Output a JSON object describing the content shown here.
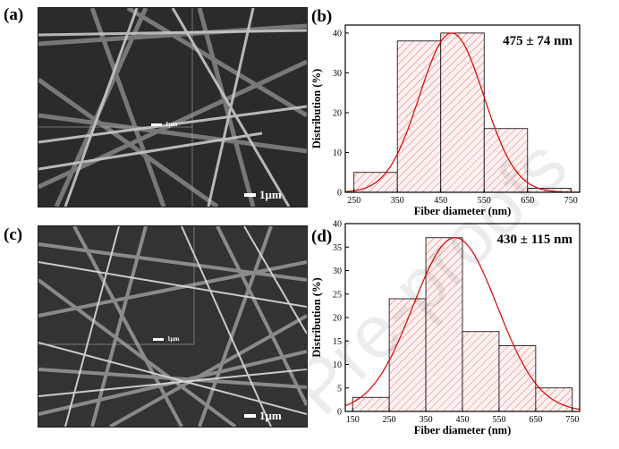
{
  "figure": {
    "panels": {
      "a": {
        "label": "(a)",
        "scale_main": "1μm",
        "scale_inset": "1μm"
      },
      "b": {
        "label": "(b)"
      },
      "c": {
        "label": "(c)",
        "scale_main": "1μm",
        "scale_inset": "1μm"
      },
      "d": {
        "label": "(d)"
      }
    },
    "watermark": "Pre-proofs",
    "colors": {
      "bar_hatch": "#e86a6a",
      "fit_curve": "#e00000",
      "axis": "#000000"
    }
  },
  "chart_data": [
    {
      "type": "bar",
      "panel": "b",
      "categories": [
        "250-350",
        "350-450",
        "450-550",
        "550-650",
        "650-750"
      ],
      "values": [
        5,
        38,
        40,
        16,
        1
      ],
      "x_ticks": [
        250,
        350,
        450,
        550,
        650,
        750
      ],
      "y_ticks": [
        0,
        10,
        20,
        30,
        40
      ],
      "xlim": [
        230,
        770
      ],
      "ylim": [
        0,
        42
      ],
      "xlabel": "Fiber diameter (nm)",
      "ylabel": "Distribution (%)",
      "annotation": "475 ± 74 nm",
      "fit": {
        "type": "gaussian",
        "mean": 475,
        "sd": 74,
        "peak": 40
      },
      "grid": false
    },
    {
      "type": "bar",
      "panel": "d",
      "categories": [
        "150-250",
        "250-350",
        "350-450",
        "450-550",
        "550-650",
        "650-750"
      ],
      "values": [
        3,
        24,
        37,
        17,
        14,
        5
      ],
      "x_ticks": [
        150,
        250,
        350,
        450,
        550,
        650,
        750
      ],
      "y_ticks": [
        0,
        5,
        10,
        15,
        20,
        25,
        30,
        35,
        40
      ],
      "xlim": [
        130,
        770
      ],
      "ylim": [
        0,
        40
      ],
      "xlabel": "Fiber diameter (nm)",
      "ylabel": "Distribution (%)",
      "annotation": "430 ± 115 nm",
      "fit": {
        "type": "gaussian",
        "mean": 430,
        "sd": 115,
        "peak": 37
      },
      "grid": false
    }
  ]
}
